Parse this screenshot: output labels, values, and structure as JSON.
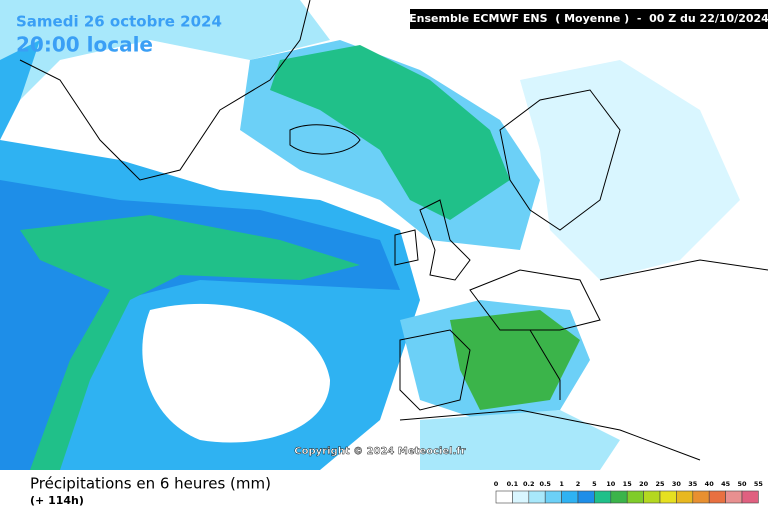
{
  "header": {
    "date": "Samedi 26 octobre 2024",
    "time": "20:00 locale",
    "model": "Ensemble ECMWF ENS  ( Moyenne )  -  00 Z du 22/10/2024"
  },
  "copyright": "Copyright © 2024 Meteociel.fr",
  "footer": {
    "title": "Précipitations en 6 heures (mm)",
    "lead": "(+ 114h)"
  },
  "legend": {
    "labels": [
      0,
      0.1,
      0.2,
      0.5,
      1,
      2,
      5,
      10,
      15,
      20,
      25,
      30,
      35,
      40,
      45,
      50,
      55
    ],
    "colors": [
      "#ffffff",
      "#d9f6ff",
      "#a8e8fb",
      "#6cd0f7",
      "#2fb2f2",
      "#1e8ee8",
      "#20c089",
      "#3bb44a",
      "#7fcc2a",
      "#b4d820",
      "#e6e020",
      "#e8b820",
      "#e89030",
      "#e87040",
      "#e89090",
      "#e06080"
    ]
  }
}
